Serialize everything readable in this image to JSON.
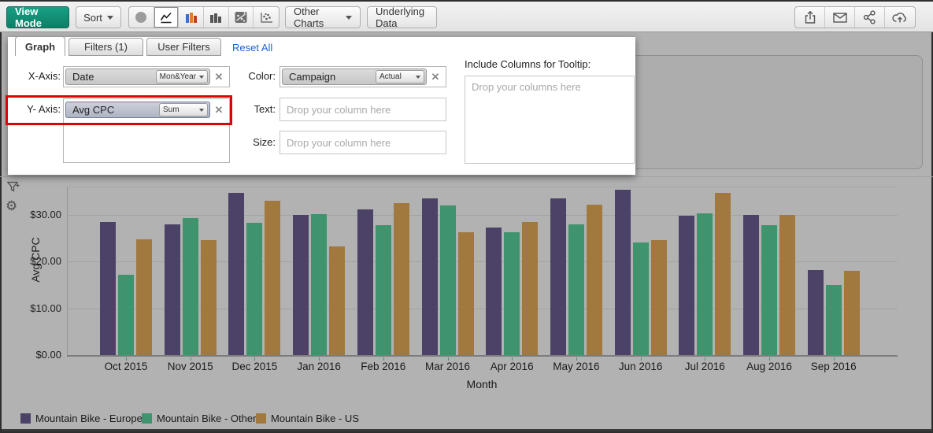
{
  "toolbar": {
    "view_mode": "View Mode",
    "sort": "Sort",
    "other_charts": "Other Charts",
    "underlying_data": "Underlying Data"
  },
  "panel": {
    "tabs": [
      {
        "label": "Graph"
      },
      {
        "label": "Filters  (1)"
      },
      {
        "label": "User Filters"
      }
    ],
    "reset_all": "Reset All",
    "x_axis": {
      "label": "X-Axis:",
      "field": "Date",
      "aggregation": "Mon&Year"
    },
    "y_axis": {
      "label": "Y- Axis:",
      "field": "Avg CPC",
      "aggregation": "Sum"
    },
    "color": {
      "label": "Color:",
      "field": "Campaign",
      "aggregation": "Actual"
    },
    "text": {
      "label": "Text:",
      "placeholder": "Drop your column here"
    },
    "size": {
      "label": "Size:",
      "placeholder": "Drop your column here"
    },
    "tooltip": {
      "label": "Include Columns for Tooltip:",
      "placeholder": "Drop your columns here"
    }
  },
  "colors": {
    "accent_teal": "#0d8068",
    "highlight_red": "#dd0404",
    "background_dim": "#b2b2b2"
  },
  "chart_data": {
    "type": "bar",
    "title": "",
    "xlabel": "Month",
    "ylabel": "Avg CPC",
    "ylim": [
      0,
      36
    ],
    "grid": true,
    "legend_position": "bottom",
    "yticks": [
      {
        "value": 0,
        "label": "$0.00"
      },
      {
        "value": 10,
        "label": "$10.00"
      },
      {
        "value": 20,
        "label": "$20.00"
      },
      {
        "value": 30,
        "label": "$30.00"
      }
    ],
    "categories": [
      "Oct 2015",
      "Nov 2015",
      "Dec 2015",
      "Jan 2016",
      "Feb 2016",
      "Mar 2016",
      "Apr 2016",
      "May 2016",
      "Jun 2016",
      "Jul 2016",
      "Aug 2016",
      "Sep 2016"
    ],
    "series": [
      {
        "name": "Mountain Bike - Europe",
        "color": "#4c4268",
        "values": [
          28.4,
          28.0,
          34.6,
          30.0,
          31.2,
          33.5,
          27.2,
          33.4,
          35.4,
          29.8,
          29.9,
          18.2
        ]
      },
      {
        "name": "Mountain Bike - Other",
        "color": "#3f936d",
        "values": [
          17.2,
          29.2,
          28.3,
          30.1,
          27.8,
          32.0,
          26.2,
          28.0,
          24.0,
          30.2,
          27.7,
          15.0
        ]
      },
      {
        "name": "Mountain Bike - US",
        "color": "#a1793f",
        "values": [
          24.8,
          24.6,
          33.0,
          23.2,
          32.5,
          26.3,
          28.5,
          32.1,
          24.6,
          34.7,
          30.0,
          18.0
        ]
      }
    ]
  }
}
